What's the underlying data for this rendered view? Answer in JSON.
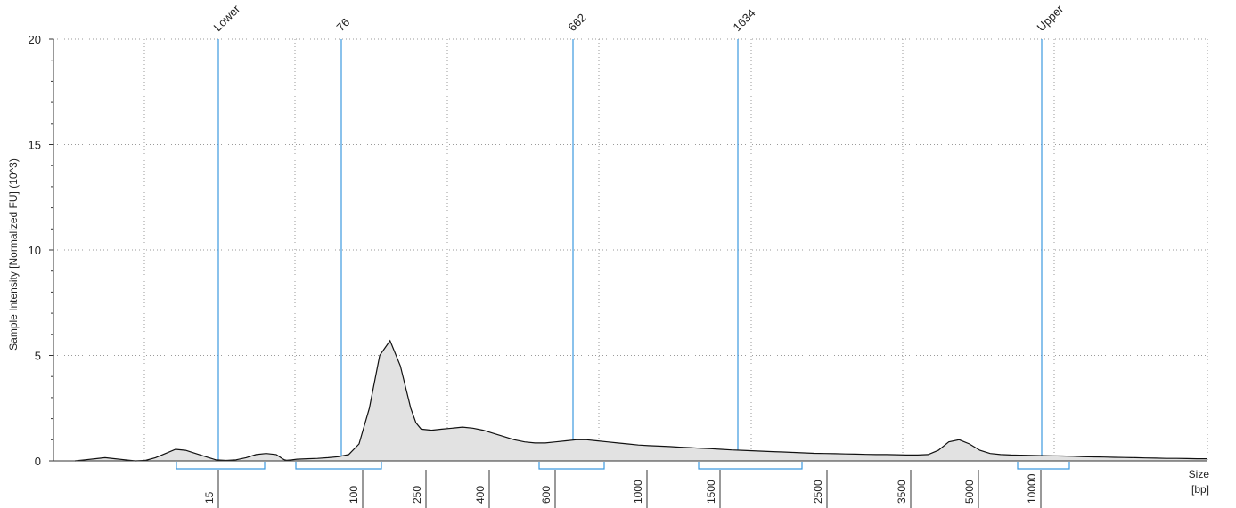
{
  "chart_data": {
    "type": "area",
    "ylabel": "Sample Intensity [Normalized FU] (10^3)",
    "xlabel_line1": "Size",
    "xlabel_line2": "[bp]",
    "ylim": [
      0,
      20
    ],
    "yticks": [
      0,
      5,
      10,
      15,
      20
    ],
    "xticks": [
      {
        "label": "15",
        "pos": 245
      },
      {
        "label": "100",
        "pos": 407
      },
      {
        "label": "250",
        "pos": 478
      },
      {
        "label": "400",
        "pos": 549
      },
      {
        "label": "600",
        "pos": 623
      },
      {
        "label": "1000",
        "pos": 726
      },
      {
        "label": "1500",
        "pos": 808
      },
      {
        "label": "2500",
        "pos": 928
      },
      {
        "label": "3500",
        "pos": 1022
      },
      {
        "label": "5000",
        "pos": 1098
      },
      {
        "label": "10000",
        "pos": 1168
      }
    ],
    "grid": true,
    "peaks": [
      {
        "label": "Lower",
        "size_bp": 15,
        "height": 0.55,
        "bracket": [
          11,
          19
        ]
      },
      {
        "label": "76",
        "size_bp": 76,
        "height": 0.35,
        "bracket": [
          55,
          110
        ]
      },
      {
        "label": "662",
        "size_bp": 662,
        "height": 5.7,
        "bracket": [
          560,
          850
        ]
      },
      {
        "label": "1634",
        "size_bp": 1634,
        "height": 1.0,
        "bracket": [
          1350,
          2400
        ]
      },
      {
        "label": "Upper",
        "size_bp": 10380,
        "height": 1.0,
        "bracket": [
          9500,
          11000
        ]
      }
    ],
    "series": [
      {
        "x": [
          0,
          0.5,
          1.0,
          1.5,
          2.0,
          2.5,
          3.0,
          3.5,
          4.0,
          4.5,
          5.0,
          5.5,
          6.0,
          6.5,
          7.0,
          7.5,
          8.0,
          8.5,
          9.0,
          9.5,
          10.0,
          10.3,
          10.6,
          10.8,
          11.0,
          11.5,
          12.0,
          13.0,
          14.0,
          15.0,
          16.0,
          17.0,
          18.0,
          19.0,
          20.0,
          21.0,
          22.0,
          23.0,
          23.5,
          24.0,
          25.0,
          26.0,
          27.0,
          28.0,
          29.0,
          30.0,
          31.0,
          32.0,
          33.0,
          34.0,
          35.0,
          36.0,
          37.0,
          38.0,
          39.0,
          40.0,
          41.0,
          42.0,
          43.0,
          44.0,
          45.0,
          46.0,
          47.0,
          48.0,
          49.0,
          50.0,
          51.0,
          52.0,
          53.0,
          54.0,
          55.0,
          56.0,
          57.0,
          58.0,
          59.0,
          60.0,
          61.0,
          62.0,
          63.0,
          64.0,
          65.0,
          66.0,
          67.0,
          68.0,
          69.0,
          70.0,
          71.0,
          72.0,
          73.0,
          74.0,
          75.0,
          76.0,
          77.0,
          78.0,
          79.0,
          80.0,
          81.0,
          82.0,
          83.0,
          84.0,
          85.0,
          86.0,
          87.0,
          88.0,
          89.0,
          90.0,
          91.0,
          92.0,
          93.0,
          94.0,
          95.0,
          96.0,
          97.0,
          98.0,
          99.0,
          100.0
        ],
        "y": [
          0.0,
          0.05,
          0.1,
          0.15,
          0.1,
          0.05,
          0.0,
          0.02,
          0.15,
          0.35,
          0.55,
          0.5,
          0.35,
          0.2,
          0.05,
          0.02,
          0.05,
          0.15,
          0.3,
          0.35,
          0.3,
          0.2,
          0.1,
          0.05,
          0.03,
          0.05,
          0.08,
          0.1,
          0.12,
          0.15,
          0.2,
          0.3,
          0.8,
          2.5,
          5.0,
          5.7,
          4.5,
          2.5,
          1.8,
          1.5,
          1.45,
          1.5,
          1.55,
          1.6,
          1.55,
          1.45,
          1.3,
          1.15,
          1.0,
          0.9,
          0.85,
          0.85,
          0.9,
          0.95,
          1.0,
          1.0,
          0.95,
          0.9,
          0.85,
          0.8,
          0.75,
          0.72,
          0.7,
          0.68,
          0.65,
          0.63,
          0.6,
          0.58,
          0.55,
          0.52,
          0.5,
          0.48,
          0.46,
          0.44,
          0.42,
          0.4,
          0.38,
          0.36,
          0.35,
          0.34,
          0.33,
          0.32,
          0.31,
          0.3,
          0.3,
          0.29,
          0.28,
          0.28,
          0.3,
          0.5,
          0.9,
          1.0,
          0.8,
          0.5,
          0.35,
          0.3,
          0.28,
          0.27,
          0.26,
          0.25,
          0.24,
          0.23,
          0.22,
          0.2,
          0.19,
          0.18,
          0.17,
          0.16,
          0.15,
          0.14,
          0.13,
          0.12,
          0.12,
          0.11,
          0.1,
          0.1
        ]
      }
    ]
  }
}
